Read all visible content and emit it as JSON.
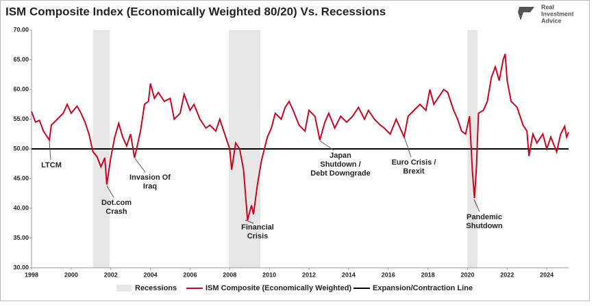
{
  "chart_data": {
    "type": "line",
    "title": "ISM Composite Index (Economically Weighted 80/20) Vs. Recessions",
    "logo": [
      "Real",
      "Investment",
      "Advice"
    ],
    "xlim": [
      1998,
      2025.1
    ],
    "xticks": [
      1998,
      2000,
      2002,
      2004,
      2006,
      2008,
      2010,
      2012,
      2014,
      2016,
      2018,
      2020,
      2022,
      2024
    ],
    "ylim": [
      30,
      70
    ],
    "yticks": [
      {
        "value": 30,
        "label": "30.00"
      },
      {
        "value": 35,
        "label": "35.00"
      },
      {
        "value": 40,
        "label": "40.00"
      },
      {
        "value": 45,
        "label": "45.00"
      },
      {
        "value": 50,
        "label": "50.00"
      },
      {
        "value": 55,
        "label": "55.00"
      },
      {
        "value": 60,
        "label": "60.00"
      },
      {
        "value": 65,
        "label": "65.00"
      },
      {
        "value": 70,
        "label": "70.00"
      }
    ],
    "recessions": {
      "name": "Recessions",
      "color": "#e6e6e6",
      "ranges": [
        [
          2001.1,
          2001.95
        ],
        [
          2007.95,
          2009.55
        ],
        [
          2020.0,
          2020.5
        ]
      ]
    },
    "threshold": {
      "name": "Expansion/Contraction Line",
      "value": 50,
      "color": "#000000"
    },
    "series": [
      {
        "name": "ISM Composite (Economically Weighted)",
        "color": "#d0021b",
        "x": [
          1998.0,
          1998.2,
          1998.4,
          1998.6,
          1998.9,
          1999.0,
          1999.3,
          1999.6,
          1999.8,
          2000.0,
          2000.3,
          2000.5,
          2000.7,
          2000.9,
          2001.1,
          2001.3,
          2001.5,
          2001.7,
          2001.8,
          2002.0,
          2002.2,
          2002.4,
          2002.6,
          2002.8,
          2003.0,
          2003.2,
          2003.5,
          2003.7,
          2003.9,
          2004.0,
          2004.2,
          2004.4,
          2004.7,
          2005.0,
          2005.2,
          2005.5,
          2005.7,
          2006.0,
          2006.2,
          2006.5,
          2006.8,
          2007.0,
          2007.3,
          2007.5,
          2007.8,
          2008.0,
          2008.1,
          2008.3,
          2008.5,
          2008.7,
          2008.9,
          2009.1,
          2009.2,
          2009.4,
          2009.6,
          2009.9,
          2010.1,
          2010.3,
          2010.6,
          2010.8,
          2011.0,
          2011.2,
          2011.5,
          2011.8,
          2012.0,
          2012.3,
          2012.55,
          2012.8,
          2013.0,
          2013.3,
          2013.6,
          2013.9,
          2014.2,
          2014.5,
          2014.8,
          2015.0,
          2015.3,
          2015.6,
          2015.8,
          2016.1,
          2016.4,
          2016.8,
          2017.0,
          2017.3,
          2017.6,
          2017.9,
          2018.1,
          2018.3,
          2018.6,
          2018.8,
          2019.0,
          2019.3,
          2019.5,
          2019.7,
          2019.9,
          2020.1,
          2020.25,
          2020.35,
          2020.45,
          2020.55,
          2020.8,
          2021.0,
          2021.2,
          2021.4,
          2021.6,
          2021.8,
          2021.9,
          2022.0,
          2022.2,
          2022.5,
          2022.8,
          2023.0,
          2023.1,
          2023.3,
          2023.5,
          2023.8,
          2024.0,
          2024.2,
          2024.5,
          2024.7,
          2024.9,
          2025.0,
          2025.1
        ],
        "values": [
          56.3,
          54.5,
          54.8,
          53.0,
          51.5,
          54.0,
          55.0,
          56.0,
          57.5,
          56.0,
          57.2,
          56.0,
          54.5,
          52.5,
          49.5,
          48.7,
          47.0,
          48.5,
          44.0,
          48.5,
          52.0,
          54.3,
          52.0,
          50.5,
          52.5,
          48.5,
          53.0,
          57.5,
          58.0,
          61.0,
          58.5,
          59.5,
          58.0,
          58.5,
          55.0,
          56.0,
          59.2,
          56.5,
          57.5,
          55.0,
          53.5,
          54.0,
          53.0,
          55.0,
          52.0,
          50.0,
          46.5,
          51.0,
          50.0,
          46.5,
          38.0,
          40.5,
          39.0,
          44.0,
          48.0,
          52.0,
          53.5,
          56.0,
          55.0,
          57.0,
          58.0,
          56.5,
          54.0,
          53.0,
          56.5,
          55.5,
          51.5,
          54.5,
          56.0,
          53.5,
          55.5,
          54.5,
          55.5,
          57.0,
          55.0,
          56.5,
          55.0,
          54.0,
          53.5,
          52.5,
          55.0,
          52.0,
          55.5,
          56.5,
          57.5,
          56.5,
          60.0,
          57.5,
          59.0,
          60.0,
          59.5,
          56.5,
          55.0,
          53.0,
          52.5,
          55.5,
          46.0,
          41.7,
          47.0,
          56.0,
          56.5,
          58.0,
          62.0,
          63.8,
          61.5,
          65.0,
          66.0,
          61.5,
          58.0,
          57.0,
          54.0,
          53.0,
          48.8,
          52.5,
          51.0,
          52.5,
          50.0,
          52.0,
          49.5,
          52.5,
          53.8,
          52.0,
          52.8
        ]
      }
    ],
    "annotations": [
      [
        "LTCM"
      ],
      [
        "Dot.com",
        "Crash"
      ],
      [
        "Invasion Of",
        "Iraq"
      ],
      [
        "Financial",
        "Crisis"
      ],
      [
        "Japan",
        "Shutdown /",
        "Debt Downgrade"
      ],
      [
        "Euro Crisis /",
        "Brexit"
      ],
      [
        "Pandemic",
        "Shutdown"
      ]
    ]
  }
}
